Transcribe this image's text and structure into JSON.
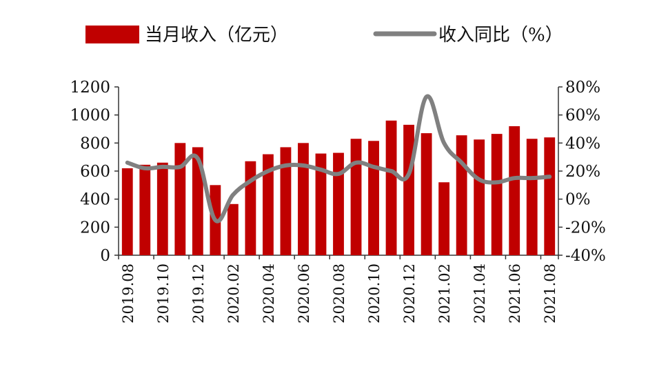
{
  "chart_data": {
    "type": "bar",
    "title": "",
    "xlabel": "",
    "ylabel": "",
    "legend_position": "top",
    "grid": false,
    "categories": [
      "2019.08",
      "2019.09",
      "2019.10",
      "2019.11",
      "2019.12",
      "2020.01",
      "2020.02",
      "2020.03",
      "2020.04",
      "2020.05",
      "2020.06",
      "2020.07",
      "2020.08",
      "2020.09",
      "2020.10",
      "2020.11",
      "2020.12",
      "2021.01",
      "2021.02",
      "2021.03",
      "2021.04",
      "2021.05",
      "2021.06",
      "2021.07",
      "2021.08"
    ],
    "xtick_labels": [
      "2019.08",
      "2019.10",
      "2019.12",
      "2020.02",
      "2020.04",
      "2020.06",
      "2020.08",
      "2020.10",
      "2020.12",
      "2021.02",
      "2021.04",
      "2021.06",
      "2021.08"
    ],
    "ylim_left": [
      0,
      1200
    ],
    "yticks_left": [
      "0",
      "200",
      "400",
      "600",
      "800",
      "1000",
      "1200"
    ],
    "ylim_right": [
      -40,
      80
    ],
    "yticks_right": [
      "-40%",
      "-20%",
      "0%",
      "20%",
      "40%",
      "60%",
      "80%"
    ],
    "series": [
      {
        "name": "当月收入（亿元）",
        "type": "bar",
        "axis": "left",
        "color": "#C00000",
        "values": [
          620,
          645,
          660,
          800,
          770,
          500,
          365,
          670,
          720,
          770,
          800,
          725,
          730,
          830,
          815,
          960,
          930,
          870,
          520,
          855,
          825,
          865,
          920,
          830,
          840
        ]
      },
      {
        "name": "收入同比（%）",
        "type": "line",
        "axis": "right",
        "color": "#808080",
        "values": [
          26,
          22,
          23,
          23,
          29,
          -15,
          3,
          13,
          20,
          24,
          24,
          21,
          18,
          26,
          23,
          20,
          18,
          73,
          40,
          26,
          14,
          12,
          15,
          15,
          16
        ]
      }
    ]
  }
}
